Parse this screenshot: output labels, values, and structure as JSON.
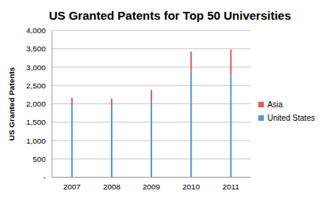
{
  "chart_data": {
    "type": "bar",
    "title": "US Granted Patents for Top 50 Universities",
    "y_label": "US Granted Patents",
    "categories": [
      "2007",
      "2008",
      "2009",
      "2010",
      "2011"
    ],
    "series": [
      {
        "name": "United States",
        "color": "#5b96d0",
        "values": [
          1990,
          1950,
          2080,
          2880,
          2800
        ]
      },
      {
        "name": "Asia",
        "color": "#d4625f",
        "values": [
          170,
          190,
          300,
          540,
          680
        ]
      }
    ],
    "stacked": true,
    "ylim": [
      0,
      4000
    ],
    "yticks": [
      {
        "value": 0,
        "label": "-"
      },
      500,
      {
        "value": 1000,
        "label": "1,000"
      },
      {
        "value": 1500,
        "label": "1,500"
      },
      {
        "value": 2000,
        "label": "2,000"
      },
      {
        "value": 2500,
        "label": "2,500"
      },
      {
        "value": 3000,
        "label": "3,000"
      },
      {
        "value": 3500,
        "label": "3,500"
      },
      {
        "value": 4000,
        "label": "4,000"
      }
    ],
    "grid": true,
    "legend": "right"
  }
}
